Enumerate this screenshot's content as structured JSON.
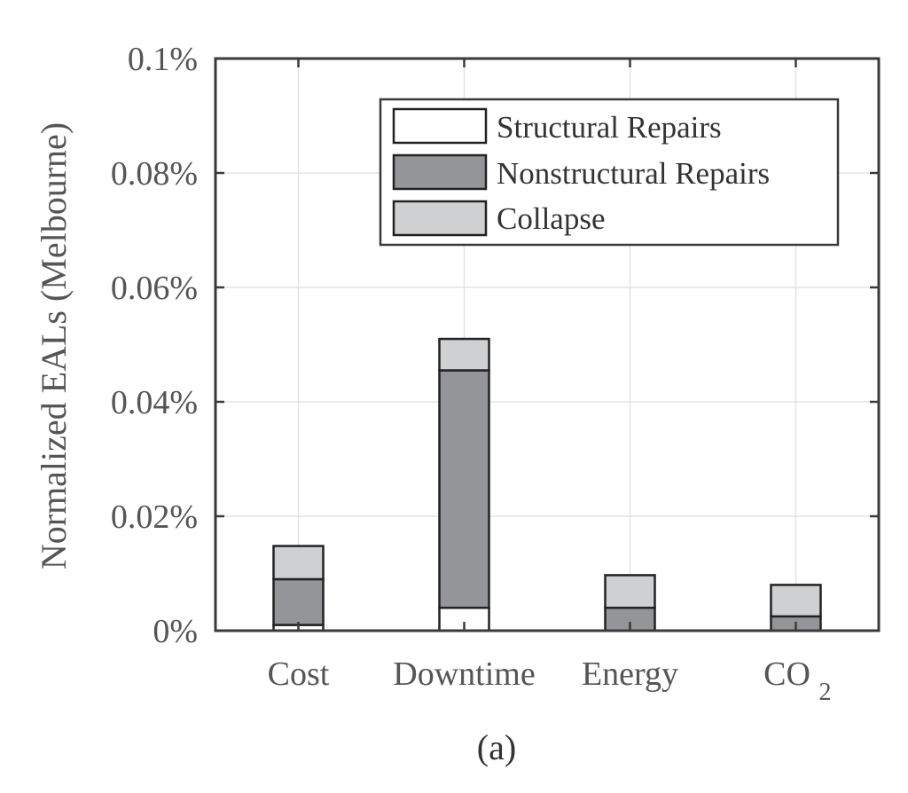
{
  "chart_data": {
    "type": "bar",
    "stacked": true,
    "categories": [
      "Cost",
      "Downtime",
      "Energy",
      "CO2"
    ],
    "category_labels": [
      {
        "main": "Cost",
        "sub": ""
      },
      {
        "main": "Downtime",
        "sub": ""
      },
      {
        "main": "Energy",
        "sub": ""
      },
      {
        "main": "CO",
        "sub": "2"
      }
    ],
    "series": [
      {
        "name": "Structural Repairs",
        "color": "#ffffff",
        "values": [
          0.001,
          0.004,
          0.0,
          0.0
        ]
      },
      {
        "name": "Nonstructural Repairs",
        "color": "#939598",
        "values": [
          0.008,
          0.0415,
          0.004,
          0.0025
        ]
      },
      {
        "name": "Collapse",
        "color": "#cfd0d2",
        "values": [
          0.0058,
          0.0055,
          0.0057,
          0.0055
        ]
      }
    ],
    "ylabel": "Normalized EALs (Melbourne)",
    "xlabel": "",
    "ylim": [
      0,
      0.1
    ],
    "yticks": [
      0,
      0.02,
      0.04,
      0.06,
      0.08,
      0.1
    ],
    "ytick_labels": [
      "0%",
      "0.02%",
      "0.04%",
      "0.06%",
      "0.08%",
      "0.1%"
    ],
    "grid": true,
    "legend_position": "top-right",
    "caption": "(a)"
  }
}
